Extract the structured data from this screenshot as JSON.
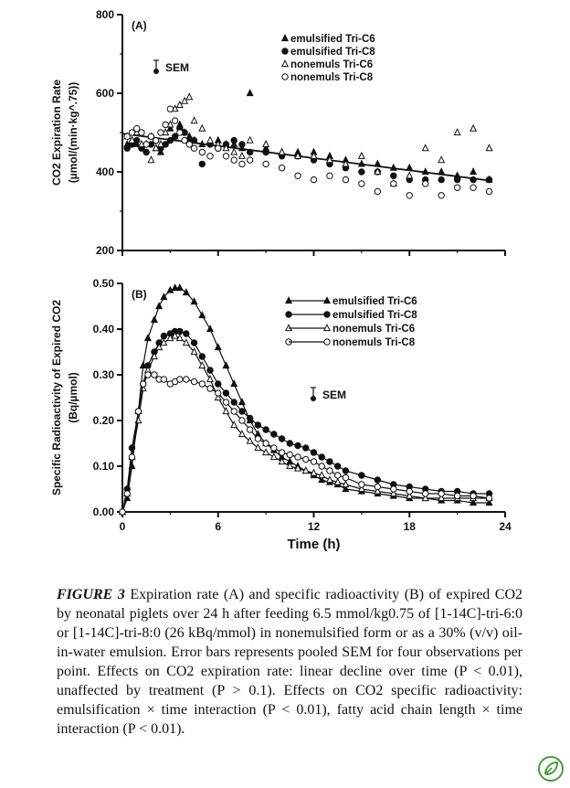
{
  "chart_data": [
    {
      "type": "scatter",
      "panel_label": "(A)",
      "ylabel_line1": "CO2 Expiration Rate",
      "ylabel_line2": "(µmol/(min·kg^.75))",
      "ylim": [
        200,
        800
      ],
      "yticks": [
        "200",
        "400",
        "600",
        "800"
      ],
      "xlim": [
        0,
        24
      ],
      "sem_label": "SEM",
      "legend_position": "top-right",
      "series": [
        {
          "name": "emulsified Tri-C6",
          "marker": "triangle-filled",
          "x": [
            0.3,
            0.6,
            0.9,
            1.2,
            1.5,
            1.8,
            2.1,
            2.4,
            2.7,
            3.0,
            3.3,
            3.6,
            3.9,
            4.2,
            4.5,
            5.0,
            5.5,
            6.0,
            6.5,
            7.0,
            7.5,
            8.0,
            9.0,
            10.0,
            11.0,
            12.0,
            13.0,
            14.0,
            15.0,
            16.0,
            17.0,
            18.0,
            19.0,
            20.0,
            21.0,
            22.0,
            23.0
          ],
          "y": [
            470,
            480,
            470,
            465,
            470,
            490,
            460,
            450,
            500,
            510,
            490,
            520,
            500,
            490,
            480,
            470,
            475,
            480,
            470,
            470,
            460,
            600,
            460,
            450,
            450,
            450,
            440,
            430,
            420,
            420,
            410,
            410,
            400,
            400,
            390,
            400,
            380
          ]
        },
        {
          "name": "emulsified Tri-C8",
          "marker": "circle-filled",
          "x": [
            0.3,
            0.6,
            0.9,
            1.2,
            1.5,
            1.8,
            2.1,
            2.4,
            2.7,
            3.0,
            3.3,
            3.6,
            3.9,
            4.2,
            4.5,
            5.0,
            5.5,
            6.0,
            6.5,
            7.0,
            7.5,
            8.0,
            9.0,
            10.0,
            11.0,
            12.0,
            13.0,
            14.0,
            15.0,
            16.0,
            17.0,
            18.0,
            19.0,
            20.0,
            21.0,
            22.0,
            23.0
          ],
          "y": [
            460,
            470,
            480,
            460,
            450,
            470,
            480,
            460,
            470,
            480,
            490,
            510,
            500,
            480,
            480,
            420,
            470,
            460,
            470,
            480,
            470,
            450,
            450,
            440,
            440,
            430,
            420,
            410,
            400,
            400,
            390,
            380,
            380,
            380,
            380,
            380,
            380
          ]
        },
        {
          "name": "nonemuls Tri-C6",
          "marker": "triangle-open",
          "x": [
            0.3,
            0.6,
            0.9,
            1.2,
            1.5,
            1.8,
            2.1,
            2.4,
            2.7,
            3.0,
            3.3,
            3.6,
            3.9,
            4.2,
            4.5,
            5.0,
            5.5,
            6.0,
            6.5,
            7.0,
            7.5,
            8.0,
            9.0,
            10.0,
            11.0,
            12.0,
            13.0,
            14.0,
            15.0,
            16.0,
            17.0,
            18.0,
            19.0,
            20.0,
            21.0,
            22.0,
            23.0
          ],
          "y": [
            490,
            480,
            500,
            470,
            470,
            430,
            460,
            470,
            500,
            520,
            560,
            570,
            580,
            590,
            530,
            510,
            480,
            470,
            460,
            450,
            440,
            480,
            470,
            450,
            440,
            440,
            430,
            420,
            440,
            400,
            370,
            390,
            460,
            430,
            500,
            510,
            460
          ]
        },
        {
          "name": "nonemuls Tri-C8",
          "marker": "circle-open",
          "x": [
            0.3,
            0.6,
            0.9,
            1.2,
            1.5,
            1.8,
            2.1,
            2.4,
            2.7,
            3.0,
            3.3,
            3.6,
            3.9,
            4.2,
            4.5,
            5.0,
            5.5,
            6.0,
            6.5,
            7.0,
            7.5,
            8.0,
            9.0,
            10.0,
            11.0,
            12.0,
            13.0,
            14.0,
            15.0,
            16.0,
            17.0,
            18.0,
            19.0,
            20.0,
            21.0,
            22.0,
            23.0
          ],
          "y": [
            490,
            500,
            510,
            500,
            470,
            490,
            480,
            500,
            520,
            560,
            530,
            500,
            480,
            470,
            460,
            450,
            440,
            460,
            440,
            430,
            420,
            430,
            420,
            410,
            390,
            380,
            390,
            380,
            370,
            350,
            370,
            340,
            370,
            340,
            360,
            360,
            350
          ]
        }
      ],
      "fit_line": {
        "x": [
          0,
          23
        ],
        "y": [
          497,
          378
        ]
      }
    },
    {
      "type": "line",
      "panel_label": "(B)",
      "ylabel_line1": "Specific Radioactivity of Expired CO2",
      "ylabel_line2": "(Bq/µmol)",
      "ylim": [
        0,
        0.5
      ],
      "yticks": [
        "0.00",
        "0.10",
        "0.20",
        "0.30",
        "0.40",
        "0.50"
      ],
      "xlim": [
        0,
        24
      ],
      "xticks": [
        "0",
        "6",
        "12",
        "18",
        "24"
      ],
      "xlabel": "Time (h)",
      "sem_label": "SEM",
      "legend_position": "top-right",
      "series": [
        {
          "name": "emulsified Tri-C6",
          "marker": "triangle-filled",
          "x": [
            0,
            0.3,
            0.6,
            1.0,
            1.3,
            1.6,
            2.0,
            2.3,
            2.6,
            3.0,
            3.3,
            3.6,
            4.0,
            4.5,
            5.0,
            5.5,
            6.0,
            6.5,
            7.0,
            7.5,
            8.0,
            8.5,
            9.0,
            9.5,
            10.0,
            10.5,
            11.0,
            11.5,
            12.0,
            12.5,
            13.0,
            13.5,
            14.0,
            15.0,
            16.0,
            17.0,
            18.0,
            19.0,
            20.0,
            21.0,
            22.0,
            23.0
          ],
          "y": [
            0.0,
            0.03,
            0.1,
            0.22,
            0.32,
            0.38,
            0.42,
            0.45,
            0.47,
            0.485,
            0.49,
            0.49,
            0.48,
            0.46,
            0.43,
            0.4,
            0.36,
            0.32,
            0.28,
            0.24,
            0.2,
            0.17,
            0.15,
            0.135,
            0.12,
            0.11,
            0.1,
            0.09,
            0.08,
            0.07,
            0.065,
            0.06,
            0.05,
            0.045,
            0.04,
            0.035,
            0.03,
            0.03,
            0.025,
            0.025,
            0.02,
            0.02
          ]
        },
        {
          "name": "emulsified Tri-C8",
          "marker": "circle-filled",
          "x": [
            0,
            0.3,
            0.6,
            1.0,
            1.3,
            1.6,
            2.0,
            2.3,
            2.6,
            3.0,
            3.3,
            3.6,
            4.0,
            4.5,
            5.0,
            5.5,
            6.0,
            6.5,
            7.0,
            7.5,
            8.0,
            8.5,
            9.0,
            9.5,
            10.0,
            10.5,
            11.0,
            11.5,
            12.0,
            12.5,
            13.0,
            13.5,
            14.0,
            15.0,
            16.0,
            17.0,
            18.0,
            19.0,
            20.0,
            21.0,
            22.0,
            23.0
          ],
          "y": [
            0.0,
            0.05,
            0.14,
            0.22,
            0.28,
            0.32,
            0.35,
            0.37,
            0.385,
            0.39,
            0.395,
            0.395,
            0.39,
            0.37,
            0.34,
            0.31,
            0.28,
            0.26,
            0.24,
            0.22,
            0.205,
            0.19,
            0.18,
            0.17,
            0.16,
            0.15,
            0.145,
            0.14,
            0.13,
            0.12,
            0.11,
            0.1,
            0.09,
            0.08,
            0.07,
            0.06,
            0.055,
            0.05,
            0.045,
            0.045,
            0.04,
            0.04
          ]
        },
        {
          "name": "nonemuls Tri-C6",
          "marker": "triangle-open",
          "x": [
            0,
            0.3,
            0.6,
            1.0,
            1.3,
            1.6,
            2.0,
            2.3,
            2.6,
            3.0,
            3.3,
            3.6,
            4.0,
            4.5,
            5.0,
            5.5,
            6.0,
            6.5,
            7.0,
            7.5,
            8.0,
            8.5,
            9.0,
            9.5,
            10.0,
            10.5,
            11.0,
            11.5,
            12.0,
            12.5,
            13.0,
            13.5,
            14.0,
            15.0,
            16.0,
            17.0,
            18.0,
            19.0,
            20.0,
            21.0,
            22.0,
            23.0
          ],
          "y": [
            0.0,
            0.04,
            0.12,
            0.2,
            0.27,
            0.31,
            0.34,
            0.36,
            0.37,
            0.38,
            0.385,
            0.38,
            0.37,
            0.35,
            0.32,
            0.29,
            0.25,
            0.22,
            0.19,
            0.17,
            0.155,
            0.14,
            0.13,
            0.12,
            0.11,
            0.1,
            0.095,
            0.09,
            0.085,
            0.08,
            0.07,
            0.065,
            0.06,
            0.05,
            0.045,
            0.04,
            0.035,
            0.03,
            0.03,
            0.03,
            0.03,
            0.03
          ]
        },
        {
          "name": "nonemuls Tri-C8",
          "marker": "circle-open",
          "x": [
            0,
            0.3,
            0.6,
            1.0,
            1.3,
            1.6,
            2.0,
            2.3,
            2.6,
            3.0,
            3.3,
            3.6,
            4.0,
            4.5,
            5.0,
            5.5,
            6.0,
            6.5,
            7.0,
            7.5,
            8.0,
            8.5,
            9.0,
            9.5,
            10.0,
            10.5,
            11.0,
            11.5,
            12.0,
            12.5,
            13.0,
            13.5,
            14.0,
            15.0,
            16.0,
            17.0,
            18.0,
            19.0,
            20.0,
            21.0,
            22.0,
            23.0
          ],
          "y": [
            0.0,
            0.04,
            0.12,
            0.22,
            0.28,
            0.3,
            0.3,
            0.29,
            0.29,
            0.28,
            0.285,
            0.29,
            0.29,
            0.285,
            0.28,
            0.27,
            0.26,
            0.24,
            0.22,
            0.2,
            0.18,
            0.16,
            0.15,
            0.14,
            0.13,
            0.125,
            0.12,
            0.115,
            0.11,
            0.1,
            0.09,
            0.08,
            0.075,
            0.06,
            0.055,
            0.05,
            0.045,
            0.04,
            0.04,
            0.035,
            0.035,
            0.03
          ]
        }
      ]
    }
  ],
  "caption": {
    "figure_label": "FIGURE 3",
    "text": "Expiration rate (A) and specific radioactivity (B) of expired CO2 by neonatal piglets over 24 h after feeding 6.5 mmol/kg0.75 of [1-14C]-tri-6:0 or [1-14C]-tri-8:0 (26 kBq/mmol) in nonemulsified form or as a 30% (v/v) oil-in-water emulsion. Error bars represents pooled SEM for four observations per point. Effects on CO2 expiration rate: linear decline over time (P < 0.01), unaffected by treatment (P > 0.1). Effects on CO2 specific radioactivity: emulsification × time interaction (P < 0.01), fatty acid chain length × time interaction (P < 0.01)."
  },
  "colors": {
    "ink": "#111111",
    "leaf_icon": "#4a9a3a"
  },
  "icons": {
    "corner": "leaf-icon"
  }
}
